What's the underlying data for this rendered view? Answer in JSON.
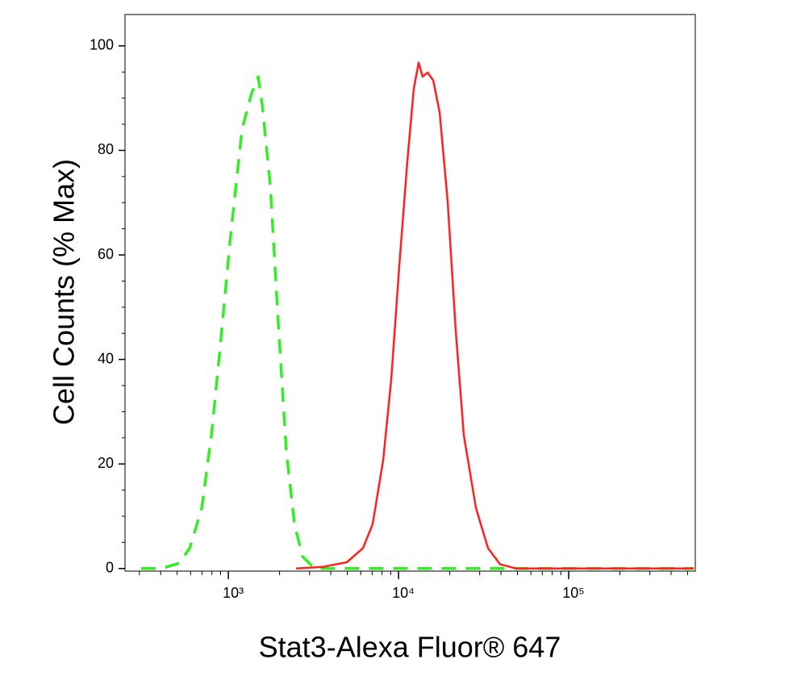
{
  "chart_data": {
    "type": "line",
    "xlabel": "Stat3-Alexa Fluor® 647",
    "ylabel": "Cell Counts (% Max)",
    "xscale": "log",
    "xlim": [
      247,
      555000
    ],
    "ylim": [
      -0.5,
      106
    ],
    "xticks": [
      {
        "value": 1000,
        "label": "10³"
      },
      {
        "value": 10000,
        "label": "10⁴"
      },
      {
        "value": 100000,
        "label": "10⁵"
      }
    ],
    "xminorticks": [
      300,
      400,
      500,
      600,
      700,
      800,
      900,
      2000,
      3000,
      4000,
      5000,
      6000,
      7000,
      8000,
      9000,
      20000,
      30000,
      40000,
      50000,
      60000,
      70000,
      80000,
      90000,
      200000,
      300000,
      400000,
      500000
    ],
    "yticks": [
      0,
      20,
      40,
      60,
      80,
      100
    ],
    "yminorticks": [
      5,
      10,
      15,
      25,
      30,
      35,
      45,
      50,
      55,
      65,
      70,
      75,
      85,
      90,
      95
    ],
    "series": [
      {
        "color": "#33ee22",
        "dashed": true,
        "x": [
          307,
          404,
          514,
          593,
          698,
          795,
          887,
          1022,
          1204,
          1372,
          1497,
          1581,
          1763,
          1966,
          2193,
          2447,
          2730,
          3212,
          10000,
          100000,
          543000
        ],
        "values": [
          0,
          0,
          1,
          3.9,
          11.6,
          25.5,
          40.9,
          62.5,
          84.1,
          91,
          94.1,
          88.7,
          73.3,
          47,
          22.4,
          8.5,
          2.3,
          0,
          0,
          0,
          0
        ]
      },
      {
        "color": "#ff2020",
        "dashed": false,
        "x": [
          2500,
          3589,
          4978,
          6184,
          7046,
          8128,
          9066,
          10100,
          11270,
          12300,
          13130,
          13870,
          14810,
          15990,
          17450,
          19460,
          21700,
          24200,
          28510,
          33580,
          39550,
          49200,
          543000
        ],
        "values": [
          0,
          0.3,
          1.2,
          3.9,
          8.5,
          20.8,
          36.3,
          57.9,
          77.9,
          91.8,
          96.8,
          94.1,
          94.9,
          93.4,
          87.2,
          70.2,
          45.5,
          25.5,
          11.6,
          3.9,
          0.8,
          0,
          0
        ]
      }
    ]
  }
}
